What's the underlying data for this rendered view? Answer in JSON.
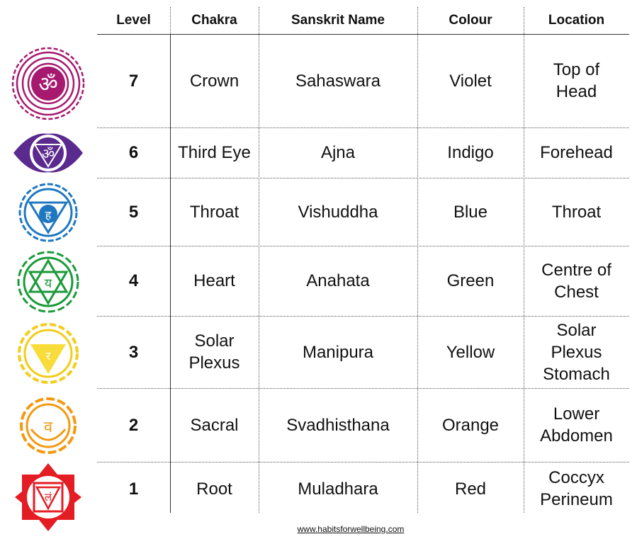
{
  "headers": [
    "Level",
    "Chakra",
    "Sanskrit Name",
    "Colour",
    "Location"
  ],
  "rows": [
    {
      "level": "7",
      "chakra": "Crown",
      "sanskrit": "Sahaswara",
      "colour": "Violet",
      "location": "Top of\nHead",
      "icon": "crown-chakra-icon",
      "color": "#a6196f"
    },
    {
      "level": "6",
      "chakra": "Third Eye",
      "sanskrit": "Ajna",
      "colour": "Indigo",
      "location": "Forehead",
      "icon": "third-eye-chakra-icon",
      "color": "#5b2a8e"
    },
    {
      "level": "5",
      "chakra": "Throat",
      "sanskrit": "Vishuddha",
      "colour": "Blue",
      "location": "Throat",
      "icon": "throat-chakra-icon",
      "color": "#1f78bf"
    },
    {
      "level": "4",
      "chakra": "Heart",
      "sanskrit": "Anahata",
      "colour": "Green",
      "location": "Centre of\nChest",
      "icon": "heart-chakra-icon",
      "color": "#1b9a3a"
    },
    {
      "level": "3",
      "chakra": "Solar\nPlexus",
      "sanskrit": "Manipura",
      "colour": "Yellow",
      "location": "Solar\nPlexus\nStomach",
      "icon": "solar-plexus-chakra-icon",
      "color": "#f2cd1a"
    },
    {
      "level": "2",
      "chakra": "Sacral",
      "sanskrit": "Svadhisthana",
      "colour": "Orange",
      "location": "Lower\nAbdomen",
      "icon": "sacral-chakra-icon",
      "color": "#f29a12"
    },
    {
      "level": "1",
      "chakra": "Root",
      "sanskrit": "Muladhara",
      "colour": "Red",
      "location": "Coccyx\nPerineum",
      "icon": "root-chakra-icon",
      "color": "#e41c24"
    }
  ],
  "footer": "www.habitsforwellbeing.com"
}
